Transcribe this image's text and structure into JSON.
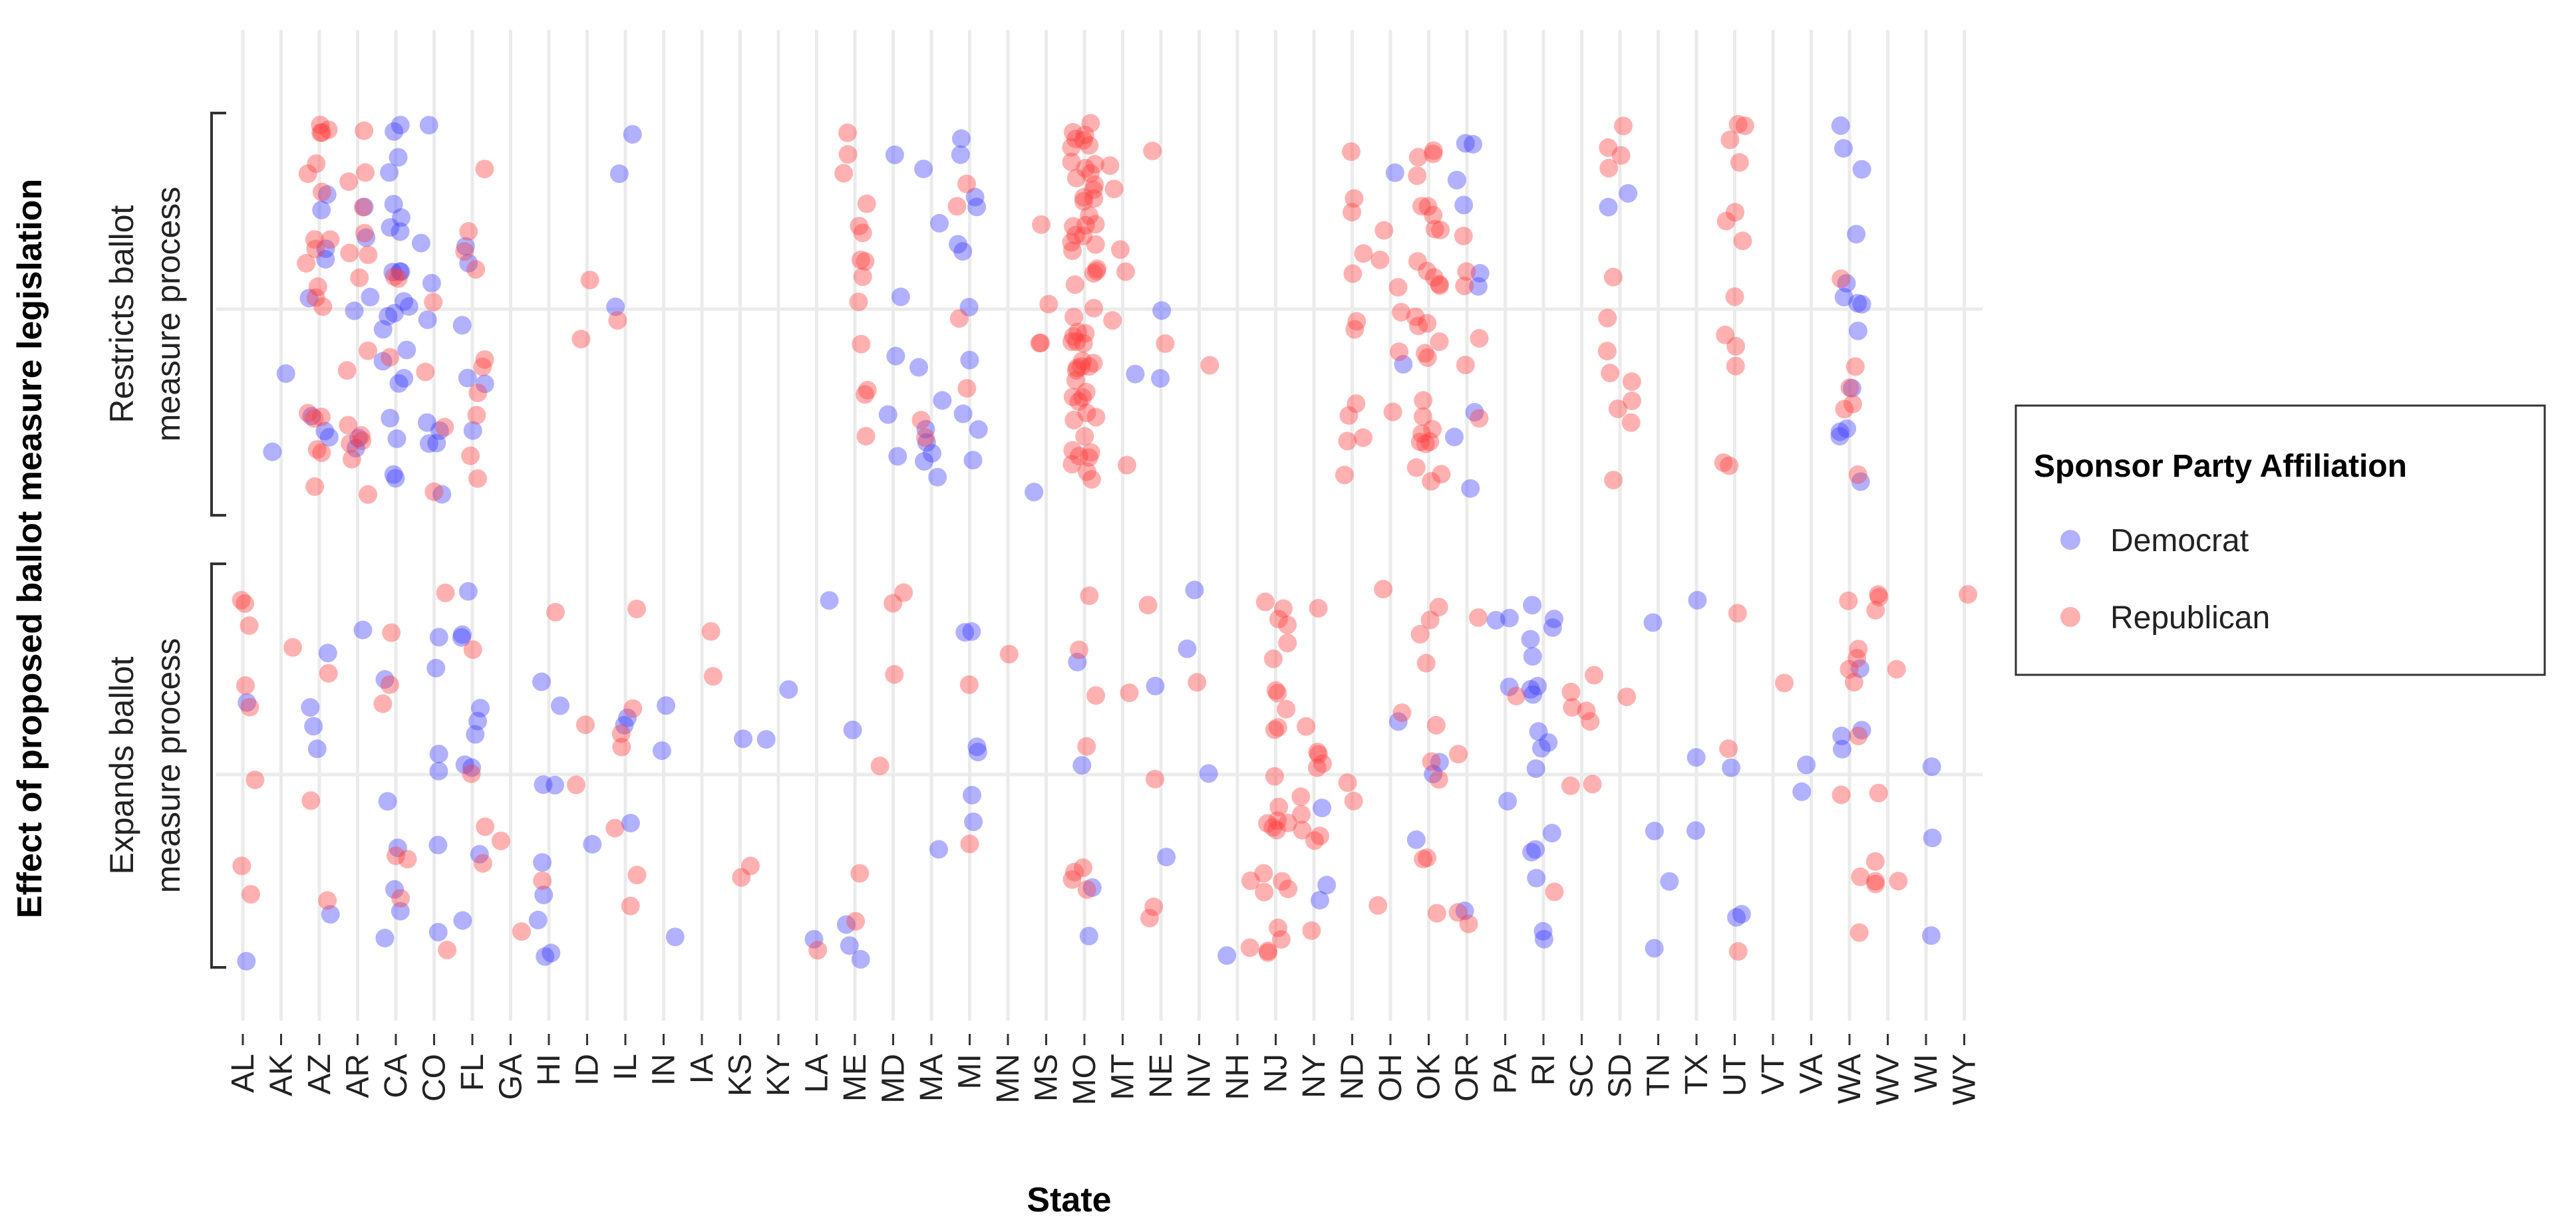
{
  "chart_data": {
    "type": "scatter",
    "xlabel": "State",
    "ylabel": "Effect of proposed ballot measure legislation",
    "categories": [
      "AL",
      "AK",
      "AZ",
      "AR",
      "CA",
      "CO",
      "FL",
      "GA",
      "HI",
      "ID",
      "IL",
      "IN",
      "IA",
      "KS",
      "KY",
      "LA",
      "ME",
      "MD",
      "MA",
      "MI",
      "MN",
      "MS",
      "MO",
      "MT",
      "NE",
      "NV",
      "NH",
      "NJ",
      "NY",
      "ND",
      "OH",
      "OK",
      "OR",
      "PA",
      "RI",
      "SC",
      "SD",
      "TN",
      "TX",
      "UT",
      "VT",
      "VA",
      "WA",
      "WV",
      "WI",
      "WY"
    ],
    "rows": [
      {
        "key": "restricts",
        "label_lines": [
          "Restricts ballot",
          "measure process"
        ]
      },
      {
        "key": "expands",
        "label_lines": [
          "Expands ballot",
          "measure process"
        ]
      }
    ],
    "legend": {
      "title": "Sponsor Party Affiliation",
      "placement": "right",
      "entries": [
        {
          "name": "Democrat",
          "color": "#3b3bff"
        },
        {
          "name": "Republican",
          "color": "#ff3b3b"
        }
      ]
    },
    "point_opacity": 0.4,
    "grid": true,
    "series": [
      {
        "name": "Democrat",
        "points": [
          {
            "state": "AL",
            "row": "expands",
            "count": 2
          },
          {
            "state": "AK",
            "row": "restricts",
            "count": 2
          },
          {
            "state": "AZ",
            "row": "restricts",
            "count": 8
          },
          {
            "state": "AZ",
            "row": "expands",
            "count": 5
          },
          {
            "state": "AR",
            "row": "restricts",
            "count": 6
          },
          {
            "state": "AR",
            "row": "expands",
            "count": 1
          },
          {
            "state": "CA",
            "row": "restricts",
            "count": 24
          },
          {
            "state": "CA",
            "row": "expands",
            "count": 6
          },
          {
            "state": "CO",
            "row": "restricts",
            "count": 9
          },
          {
            "state": "CO",
            "row": "expands",
            "count": 6
          },
          {
            "state": "FL",
            "row": "restricts",
            "count": 6
          },
          {
            "state": "FL",
            "row": "expands",
            "count": 10
          },
          {
            "state": "HI",
            "row": "expands",
            "count": 9
          },
          {
            "state": "ID",
            "row": "expands",
            "count": 1
          },
          {
            "state": "IL",
            "row": "restricts",
            "count": 3
          },
          {
            "state": "IL",
            "row": "expands",
            "count": 3
          },
          {
            "state": "IN",
            "row": "expands",
            "count": 3
          },
          {
            "state": "KS",
            "row": "expands",
            "count": 1
          },
          {
            "state": "KY",
            "row": "expands",
            "count": 2
          },
          {
            "state": "LA",
            "row": "expands",
            "count": 2
          },
          {
            "state": "ME",
            "row": "expands",
            "count": 4
          },
          {
            "state": "MD",
            "row": "restricts",
            "count": 5
          },
          {
            "state": "MA",
            "row": "restricts",
            "count": 9
          },
          {
            "state": "MA",
            "row": "expands",
            "count": 1
          },
          {
            "state": "MI",
            "row": "restricts",
            "count": 11
          },
          {
            "state": "MI",
            "row": "expands",
            "count": 6
          },
          {
            "state": "MS",
            "row": "restricts",
            "count": 1
          },
          {
            "state": "MO",
            "row": "expands",
            "count": 4
          },
          {
            "state": "MT",
            "row": "restricts",
            "count": 1
          },
          {
            "state": "NE",
            "row": "restricts",
            "count": 2
          },
          {
            "state": "NE",
            "row": "expands",
            "count": 2
          },
          {
            "state": "NV",
            "row": "expands",
            "count": 3
          },
          {
            "state": "NH",
            "row": "expands",
            "count": 1
          },
          {
            "state": "NY",
            "row": "expands",
            "count": 3
          },
          {
            "state": "OH",
            "row": "restricts",
            "count": 2
          },
          {
            "state": "OH",
            "row": "expands",
            "count": 1
          },
          {
            "state": "OK",
            "row": "expands",
            "count": 3
          },
          {
            "state": "OR",
            "row": "restricts",
            "count": 9
          },
          {
            "state": "OR",
            "row": "expands",
            "count": 1
          },
          {
            "state": "PA",
            "row": "expands",
            "count": 4
          },
          {
            "state": "RI",
            "row": "expands",
            "count": 18
          },
          {
            "state": "SD",
            "row": "restricts",
            "count": 2
          },
          {
            "state": "TN",
            "row": "expands",
            "count": 4
          },
          {
            "state": "TX",
            "row": "expands",
            "count": 3
          },
          {
            "state": "UT",
            "row": "expands",
            "count": 3
          },
          {
            "state": "VA",
            "row": "expands",
            "count": 2
          },
          {
            "state": "WA",
            "row": "restricts",
            "count": 14
          },
          {
            "state": "WA",
            "row": "expands",
            "count": 4
          },
          {
            "state": "WI",
            "row": "expands",
            "count": 3
          }
        ]
      },
      {
        "name": "Republican",
        "points": [
          {
            "state": "AL",
            "row": "expands",
            "count": 8
          },
          {
            "state": "AK",
            "row": "expands",
            "count": 1
          },
          {
            "state": "AZ",
            "row": "restricts",
            "count": 20
          },
          {
            "state": "AZ",
            "row": "expands",
            "count": 3
          },
          {
            "state": "AR",
            "row": "restricts",
            "count": 16
          },
          {
            "state": "CA",
            "row": "restricts",
            "count": 3
          },
          {
            "state": "CA",
            "row": "expands",
            "count": 6
          },
          {
            "state": "CO",
            "row": "restricts",
            "count": 4
          },
          {
            "state": "CO",
            "row": "expands",
            "count": 2
          },
          {
            "state": "FL",
            "row": "restricts",
            "count": 10
          },
          {
            "state": "FL",
            "row": "expands",
            "count": 4
          },
          {
            "state": "GA",
            "row": "expands",
            "count": 2
          },
          {
            "state": "HI",
            "row": "expands",
            "count": 2
          },
          {
            "state": "ID",
            "row": "restricts",
            "count": 2
          },
          {
            "state": "ID",
            "row": "expands",
            "count": 2
          },
          {
            "state": "IL",
            "row": "restricts",
            "count": 1
          },
          {
            "state": "IL",
            "row": "expands",
            "count": 7
          },
          {
            "state": "IA",
            "row": "expands",
            "count": 2
          },
          {
            "state": "KS",
            "row": "expands",
            "count": 2
          },
          {
            "state": "LA",
            "row": "expands",
            "count": 1
          },
          {
            "state": "ME",
            "row": "restricts",
            "count": 14
          },
          {
            "state": "ME",
            "row": "expands",
            "count": 2
          },
          {
            "state": "MD",
            "row": "expands",
            "count": 4
          },
          {
            "state": "MA",
            "row": "restricts",
            "count": 2
          },
          {
            "state": "MI",
            "row": "restricts",
            "count": 4
          },
          {
            "state": "MI",
            "row": "expands",
            "count": 2
          },
          {
            "state": "MN",
            "row": "expands",
            "count": 1
          },
          {
            "state": "MS",
            "row": "restricts",
            "count": 4
          },
          {
            "state": "MO",
            "row": "restricts",
            "count": 60
          },
          {
            "state": "MO",
            "row": "expands",
            "count": 8
          },
          {
            "state": "MT",
            "row": "restricts",
            "count": 6
          },
          {
            "state": "MT",
            "row": "expands",
            "count": 1
          },
          {
            "state": "NE",
            "row": "restricts",
            "count": 2
          },
          {
            "state": "NE",
            "row": "expands",
            "count": 4
          },
          {
            "state": "NV",
            "row": "restricts",
            "count": 1
          },
          {
            "state": "NV",
            "row": "expands",
            "count": 1
          },
          {
            "state": "NH",
            "row": "expands",
            "count": 2
          },
          {
            "state": "NJ",
            "row": "expands",
            "count": 26
          },
          {
            "state": "NY",
            "row": "expands",
            "count": 12
          },
          {
            "state": "ND",
            "row": "restricts",
            "count": 12
          },
          {
            "state": "ND",
            "row": "expands",
            "count": 2
          },
          {
            "state": "OH",
            "row": "restricts",
            "count": 6
          },
          {
            "state": "OH",
            "row": "expands",
            "count": 3
          },
          {
            "state": "OK",
            "row": "restricts",
            "count": 30
          },
          {
            "state": "OK",
            "row": "expands",
            "count": 10
          },
          {
            "state": "OR",
            "row": "restricts",
            "count": 6
          },
          {
            "state": "OR",
            "row": "expands",
            "count": 4
          },
          {
            "state": "PA",
            "row": "expands",
            "count": 1
          },
          {
            "state": "RI",
            "row": "expands",
            "count": 1
          },
          {
            "state": "SC",
            "row": "expands",
            "count": 7
          },
          {
            "state": "SD",
            "row": "restricts",
            "count": 13
          },
          {
            "state": "SD",
            "row": "expands",
            "count": 1
          },
          {
            "state": "UT",
            "row": "restricts",
            "count": 13
          },
          {
            "state": "UT",
            "row": "expands",
            "count": 3
          },
          {
            "state": "VT",
            "row": "expands",
            "count": 1
          },
          {
            "state": "WA",
            "row": "restricts",
            "count": 6
          },
          {
            "state": "WA",
            "row": "expands",
            "count": 9
          },
          {
            "state": "WV",
            "row": "expands",
            "count": 9
          },
          {
            "state": "WY",
            "row": "expands",
            "count": 1
          }
        ]
      }
    ]
  }
}
